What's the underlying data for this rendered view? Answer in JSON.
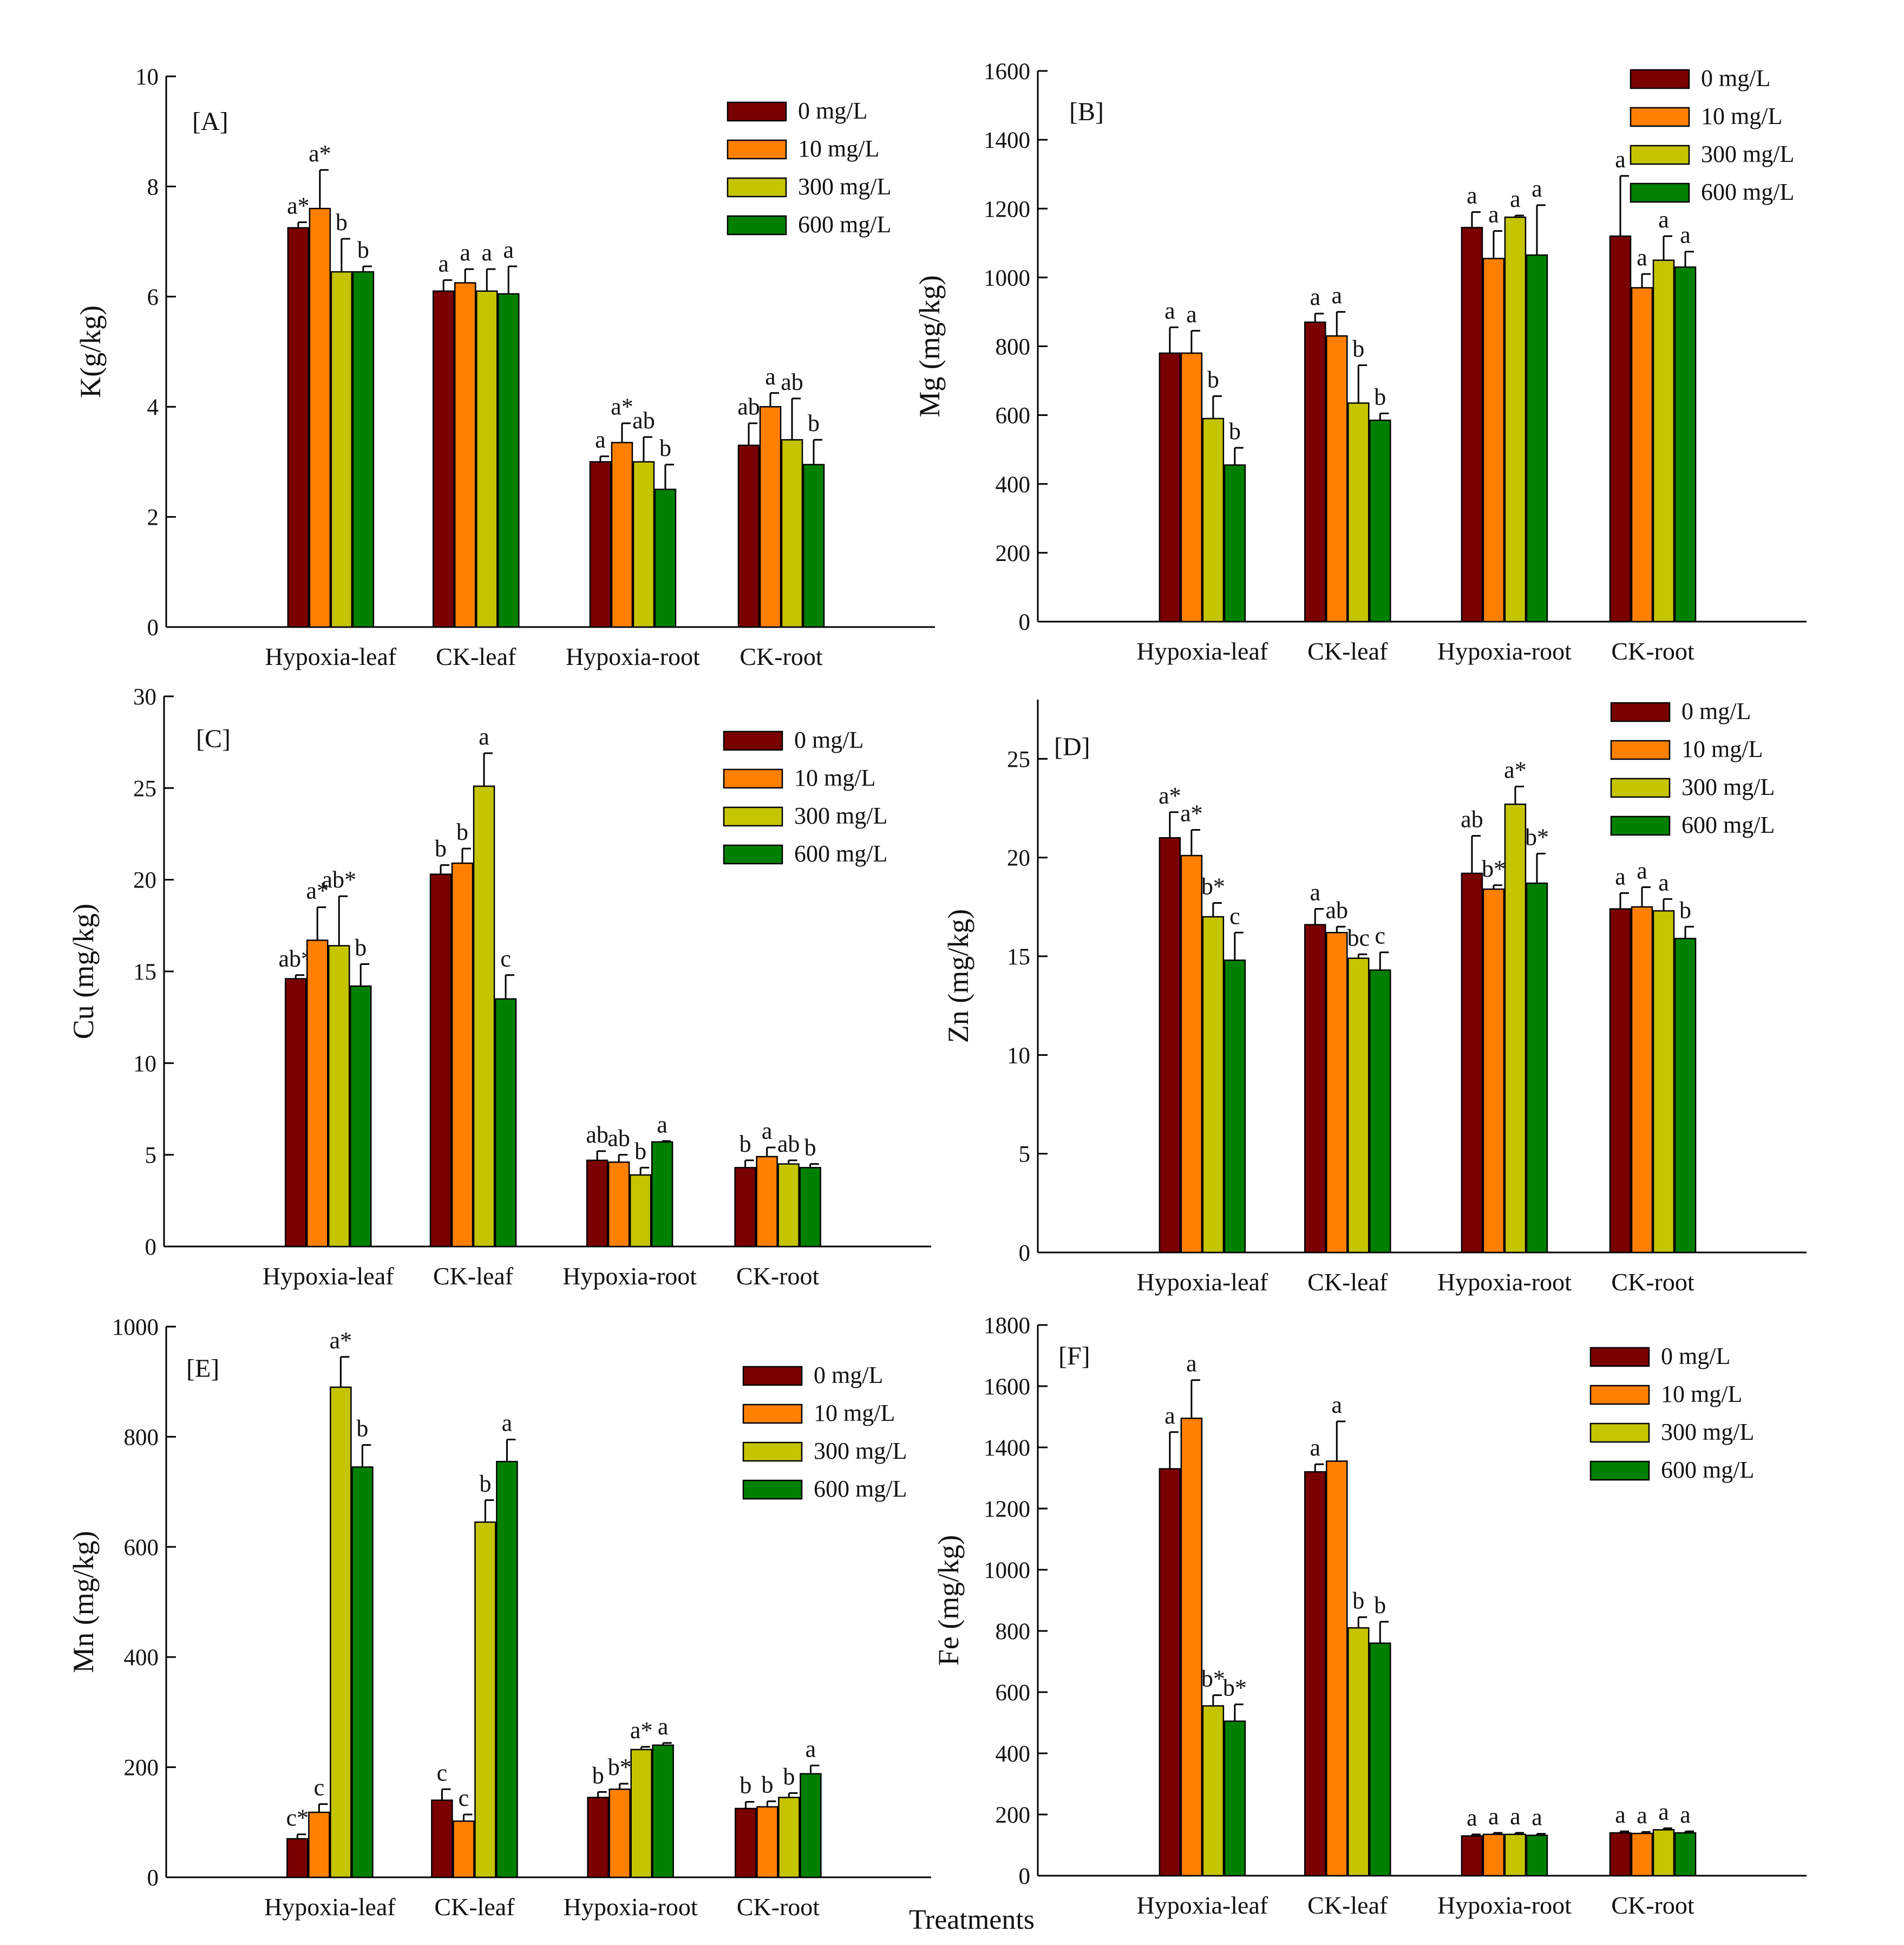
{
  "chart_data": [
    {
      "panel": "[A]",
      "type": "bar",
      "ylabel": "K(g/kg)",
      "ylim": [
        0,
        10
      ],
      "yticks": [
        0,
        2,
        4,
        6,
        8,
        10
      ],
      "categories": [
        "Hypoxia-leaf",
        "CK-leaf",
        "Hypoxia-root",
        "CK-root"
      ],
      "series": [
        {
          "name": "0 mg/L",
          "values": [
            7.25,
            6.1,
            3.0,
            3.3
          ],
          "errors": [
            0.1,
            0.2,
            0.1,
            0.4
          ],
          "sig": [
            "a*",
            "a",
            "a",
            "ab"
          ]
        },
        {
          "name": "10 mg/L",
          "values": [
            7.6,
            6.25,
            3.35,
            4.0
          ],
          "errors": [
            0.7,
            0.25,
            0.35,
            0.25
          ],
          "sig": [
            "a*",
            "a",
            "a*",
            "a"
          ]
        },
        {
          "name": "300 mg/L",
          "values": [
            6.45,
            6.1,
            3.0,
            3.4
          ],
          "errors": [
            0.6,
            0.4,
            0.45,
            0.75
          ],
          "sig": [
            "b",
            "a",
            "ab",
            "ab"
          ]
        },
        {
          "name": "600 mg/L",
          "values": [
            6.45,
            6.05,
            2.5,
            2.95
          ],
          "errors": [
            0.1,
            0.5,
            0.45,
            0.45
          ],
          "sig": [
            "b",
            "a",
            "b",
            "b"
          ]
        }
      ]
    },
    {
      "panel": "[B]",
      "type": "bar",
      "ylabel": "Mg (mg/kg)",
      "ylim": [
        0,
        1600
      ],
      "yticks": [
        0,
        200,
        400,
        600,
        800,
        1000,
        1200,
        1400,
        1600
      ],
      "categories": [
        "Hypoxia-leaf",
        "CK-leaf",
        "Hypoxia-root",
        "CK-root"
      ],
      "series": [
        {
          "name": "0 mg/L",
          "values": [
            780,
            870,
            1145,
            1120
          ],
          "errors": [
            75,
            25,
            45,
            175
          ],
          "sig": [
            "a",
            "a",
            "a",
            "a"
          ]
        },
        {
          "name": "10 mg/L",
          "values": [
            780,
            830,
            1055,
            970
          ],
          "errors": [
            65,
            70,
            80,
            40
          ],
          "sig": [
            "a",
            "a",
            "a",
            "a"
          ]
        },
        {
          "name": "300 mg/L",
          "values": [
            590,
            635,
            1175,
            1050
          ],
          "errors": [
            65,
            110,
            5,
            70
          ],
          "sig": [
            "b",
            "b",
            "a",
            "a"
          ]
        },
        {
          "name": "600 mg/L",
          "values": [
            455,
            585,
            1065,
            1030
          ],
          "errors": [
            50,
            20,
            145,
            45
          ],
          "sig": [
            "b",
            "b",
            "a",
            "a"
          ]
        }
      ]
    },
    {
      "panel": "[C]",
      "type": "bar",
      "ylabel": "Cu (mg/kg)",
      "ylim": [
        0,
        30
      ],
      "yticks": [
        0,
        5,
        10,
        15,
        20,
        25,
        30
      ],
      "categories": [
        "Hypoxia-leaf",
        "CK-leaf",
        "Hypoxia-root",
        "CK-root"
      ],
      "series": [
        {
          "name": "0 mg/L",
          "values": [
            14.6,
            20.3,
            4.7,
            4.3
          ],
          "errors": [
            0.2,
            0.5,
            0.5,
            0.4
          ],
          "sig": [
            "ab*",
            "b",
            "ab",
            "b"
          ]
        },
        {
          "name": "10 mg/L",
          "values": [
            16.7,
            20.9,
            4.6,
            4.9
          ],
          "errors": [
            1.8,
            0.8,
            0.4,
            0.5
          ],
          "sig": [
            "a*",
            "b",
            "ab",
            "a"
          ]
        },
        {
          "name": "300 mg/L",
          "values": [
            16.4,
            25.1,
            3.9,
            4.5
          ],
          "errors": [
            2.7,
            1.8,
            0.4,
            0.2
          ],
          "sig": [
            "ab*",
            "a",
            "b",
            "ab"
          ]
        },
        {
          "name": "600 mg/L",
          "values": [
            14.2,
            13.5,
            5.7,
            4.3
          ],
          "errors": [
            1.2,
            1.3,
            0.05,
            0.2
          ],
          "sig": [
            "b",
            "c",
            "a",
            "b"
          ]
        }
      ]
    },
    {
      "panel": "[D]",
      "type": "bar",
      "ylabel": "Zn (mg/kg)",
      "ylim": [
        0,
        28
      ],
      "yticks": [
        0,
        5,
        10,
        15,
        20,
        25
      ],
      "categories": [
        "Hypoxia-leaf",
        "CK-leaf",
        "Hypoxia-root",
        "CK-root"
      ],
      "series": [
        {
          "name": "0 mg/L",
          "values": [
            21.0,
            16.6,
            19.2,
            17.4
          ],
          "errors": [
            1.3,
            0.8,
            1.9,
            0.8
          ],
          "sig": [
            "a*",
            "a",
            "ab",
            "a"
          ]
        },
        {
          "name": "10 mg/L",
          "values": [
            20.1,
            16.2,
            18.4,
            17.5
          ],
          "errors": [
            1.3,
            0.3,
            0.2,
            1.0
          ],
          "sig": [
            "a*",
            "ab",
            "b*",
            "a"
          ]
        },
        {
          "name": "300 mg/L",
          "values": [
            17.0,
            14.9,
            22.7,
            17.3
          ],
          "errors": [
            0.7,
            0.2,
            0.9,
            0.6
          ],
          "sig": [
            "b*",
            "bc",
            "a*",
            "a"
          ]
        },
        {
          "name": "600 mg/L",
          "values": [
            14.8,
            14.3,
            18.7,
            15.9
          ],
          "errors": [
            1.4,
            0.9,
            1.5,
            0.6
          ],
          "sig": [
            "c",
            "c",
            "b*",
            "b"
          ]
        }
      ]
    },
    {
      "panel": "[E]",
      "type": "bar",
      "ylabel": "Mn (mg/kg)",
      "ylim": [
        0,
        1000
      ],
      "yticks": [
        0,
        200,
        400,
        600,
        800,
        1000
      ],
      "categories": [
        "Hypoxia-leaf",
        "CK-leaf",
        "Hypoxia-root",
        "CK-root"
      ],
      "series": [
        {
          "name": "0 mg/L",
          "values": [
            70,
            140,
            145,
            125
          ],
          "errors": [
            8,
            20,
            10,
            12
          ],
          "sig": [
            "c*",
            "c",
            "b",
            "b"
          ]
        },
        {
          "name": "10 mg/L",
          "values": [
            118,
            102,
            160,
            128
          ],
          "errors": [
            15,
            12,
            10,
            10
          ],
          "sig": [
            "c",
            "c",
            "b*",
            "b"
          ]
        },
        {
          "name": "300 mg/L",
          "values": [
            890,
            645,
            232,
            145
          ],
          "errors": [
            55,
            40,
            5,
            8
          ],
          "sig": [
            "a*",
            "b",
            "a*",
            "b"
          ]
        },
        {
          "name": "600 mg/L",
          "values": [
            745,
            755,
            240,
            188
          ],
          "errors": [
            40,
            40,
            4,
            15
          ],
          "sig": [
            "b",
            "a",
            "a",
            "a"
          ]
        }
      ]
    },
    {
      "panel": "[F]",
      "type": "bar",
      "ylabel": "Fe (mg/kg)",
      "ylim": [
        0,
        1800
      ],
      "yticks": [
        0,
        200,
        400,
        600,
        800,
        1000,
        1200,
        1400,
        1600,
        1800
      ],
      "categories": [
        "Hypoxia-leaf",
        "CK-leaf",
        "Hypoxia-root",
        "CK-root"
      ],
      "series": [
        {
          "name": "0 mg/L",
          "values": [
            1330,
            1320,
            130,
            140
          ],
          "errors": [
            120,
            25,
            5,
            5
          ],
          "sig": [
            "a",
            "a",
            "a",
            "a"
          ]
        },
        {
          "name": "10 mg/L",
          "values": [
            1495,
            1355,
            135,
            138
          ],
          "errors": [
            125,
            130,
            5,
            5
          ],
          "sig": [
            "a",
            "a",
            "a",
            "a"
          ]
        },
        {
          "name": "300 mg/L",
          "values": [
            555,
            810,
            135,
            150
          ],
          "errors": [
            35,
            35,
            5,
            5
          ],
          "sig": [
            "b*",
            "b",
            "a",
            "a"
          ]
        },
        {
          "name": "600 mg/L",
          "values": [
            505,
            760,
            132,
            140
          ],
          "errors": [
            55,
            70,
            5,
            5
          ],
          "sig": [
            "b*",
            "b",
            "a",
            "a"
          ]
        }
      ]
    }
  ],
  "colors": {
    "0 mg/L": "#7a0000",
    "10 mg/L": "#ff8000",
    "300 mg/L": "#c4c400",
    "600 mg/L": "#008000"
  },
  "shared_xlabel": "Treatments"
}
